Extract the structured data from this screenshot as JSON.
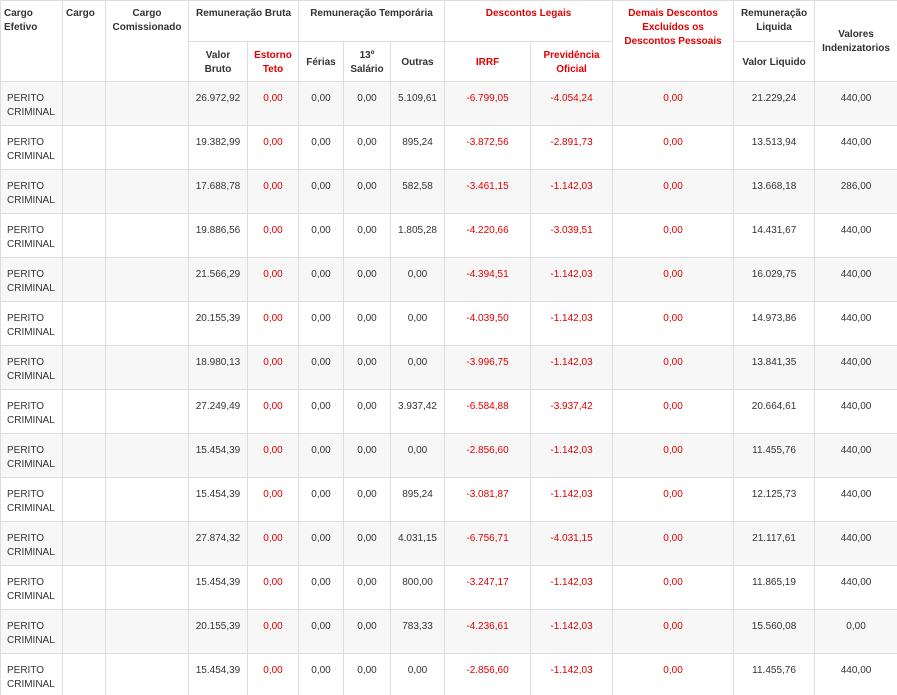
{
  "header": {
    "row1": [
      "Cargo Efetivo",
      "Cargo",
      "Cargo Comissionado",
      "Remuneração Bruta",
      "Remuneração Temporária",
      "Descontos Legais",
      "Demais Descontos Excluídos os Descontos Pessoais",
      "Remuneração Liquida",
      "Valores Indenizatorios"
    ],
    "row2": [
      "Valor Bruto",
      "Estorno Teto",
      "Férias",
      "13º Salário",
      "Outras",
      "IRRF",
      "Previdência Oficial",
      "Valor Liquido"
    ]
  },
  "rows": [
    [
      "PERITO CRIMINAL",
      "26.972,92",
      "0,00",
      "0,00",
      "0,00",
      "5.109,61",
      "-6.799,05",
      "-4.054,24",
      "0,00",
      "21.229,24",
      "440,00"
    ],
    [
      "PERITO CRIMINAL",
      "19.382,99",
      "0,00",
      "0,00",
      "0,00",
      "895,24",
      "-3.872,56",
      "-2.891,73",
      "0,00",
      "13.513,94",
      "440,00"
    ],
    [
      "PERITO CRIMINAL",
      "17.688,78",
      "0,00",
      "0,00",
      "0,00",
      "582,58",
      "-3.461,15",
      "-1.142,03",
      "0,00",
      "13.668,18",
      "286,00"
    ],
    [
      "PERITO CRIMINAL",
      "19.886,56",
      "0,00",
      "0,00",
      "0,00",
      "1.805,28",
      "-4.220,66",
      "-3.039,51",
      "0,00",
      "14.431,67",
      "440,00"
    ],
    [
      "PERITO CRIMINAL",
      "21.566,29",
      "0,00",
      "0,00",
      "0,00",
      "0,00",
      "-4.394,51",
      "-1.142,03",
      "0,00",
      "16.029,75",
      "440,00"
    ],
    [
      "PERITO CRIMINAL",
      "20.155,39",
      "0,00",
      "0,00",
      "0,00",
      "0,00",
      "-4.039,50",
      "-1.142,03",
      "0,00",
      "14.973,86",
      "440,00"
    ],
    [
      "PERITO CRIMINAL",
      "18.980,13",
      "0,00",
      "0,00",
      "0,00",
      "0,00",
      "-3.996,75",
      "-1.142,03",
      "0,00",
      "13.841,35",
      "440,00"
    ],
    [
      "PERITO CRIMINAL",
      "27.249,49",
      "0,00",
      "0,00",
      "0,00",
      "3.937,42",
      "-6.584,88",
      "-3.937,42",
      "0,00",
      "20.664,61",
      "440,00"
    ],
    [
      "PERITO CRIMINAL",
      "15.454,39",
      "0,00",
      "0,00",
      "0,00",
      "0,00",
      "-2.856,60",
      "-1.142,03",
      "0,00",
      "11.455,76",
      "440,00"
    ],
    [
      "PERITO CRIMINAL",
      "15.454,39",
      "0,00",
      "0,00",
      "0,00",
      "895,24",
      "-3.081,87",
      "-1.142,03",
      "0,00",
      "12.125,73",
      "440,00"
    ],
    [
      "PERITO CRIMINAL",
      "27.874,32",
      "0,00",
      "0,00",
      "0,00",
      "4.031,15",
      "-6.756,71",
      "-4.031,15",
      "0,00",
      "21.117,61",
      "440,00"
    ],
    [
      "PERITO CRIMINAL",
      "15.454,39",
      "0,00",
      "0,00",
      "0,00",
      "800,00",
      "-3.247,17",
      "-1.142,03",
      "0,00",
      "11.865,19",
      "440,00"
    ],
    [
      "PERITO CRIMINAL",
      "20.155,39",
      "0,00",
      "0,00",
      "0,00",
      "783,33",
      "-4.236,61",
      "-1.142,03",
      "0,00",
      "15.560,08",
      "0,00"
    ],
    [
      "PERITO CRIMINAL",
      "15.454,39",
      "0,00",
      "0,00",
      "0,00",
      "0,00",
      "-2.856,60",
      "-1.142,03",
      "0,00",
      "11.455,76",
      "440,00"
    ]
  ]
}
